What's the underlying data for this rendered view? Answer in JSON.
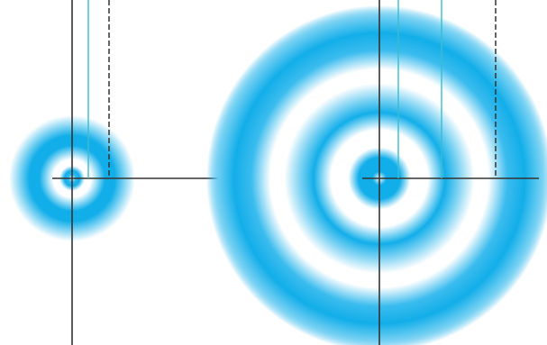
{
  "diagram": {
    "colors": {
      "ring": "#12aee9",
      "axis": "#333333",
      "radius_line": "#3bbccf",
      "dashed_line": "#333333",
      "background": "#ffffff"
    },
    "panels": [
      {
        "name": "small-orbital-diagram",
        "rings": 2
      },
      {
        "name": "large-orbital-diagram",
        "rings": 3
      }
    ]
  }
}
